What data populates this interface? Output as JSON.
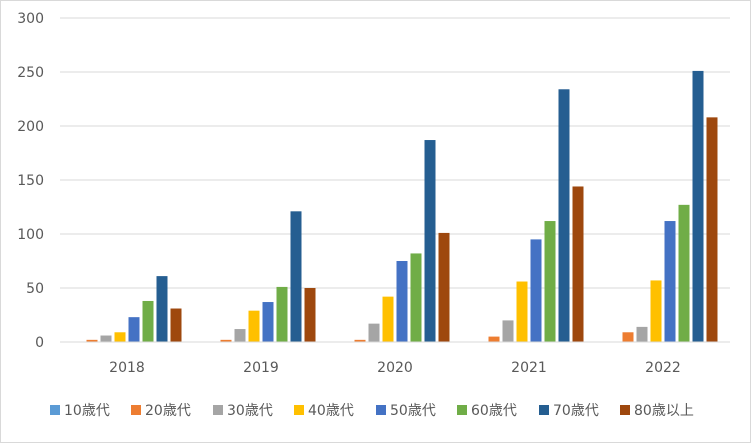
{
  "chart_data": {
    "type": "bar",
    "title": "",
    "xlabel": "",
    "ylabel": "",
    "categories": [
      "2018",
      "2019",
      "2020",
      "2021",
      "2022"
    ],
    "ylim": [
      0,
      300
    ],
    "yticks": [
      0,
      50,
      100,
      150,
      200,
      250,
      300
    ],
    "grid": true,
    "legend": "bottom",
    "series": [
      {
        "name": "10歳代",
        "color": "#5b9bd5",
        "values": [
          0,
          0,
          0,
          0,
          0
        ]
      },
      {
        "name": "20歳代",
        "color": "#ed7d31",
        "values": [
          2,
          2,
          2,
          5,
          9
        ]
      },
      {
        "name": "30歳代",
        "color": "#a5a5a5",
        "values": [
          6,
          12,
          17,
          20,
          14
        ]
      },
      {
        "name": "40歳代",
        "color": "#ffc000",
        "values": [
          9,
          29,
          42,
          56,
          57
        ]
      },
      {
        "name": "50歳代",
        "color": "#4472c4",
        "values": [
          23,
          37,
          75,
          95,
          112
        ]
      },
      {
        "name": "60歳代",
        "color": "#70ad47",
        "values": [
          38,
          51,
          82,
          112,
          127
        ]
      },
      {
        "name": "70歳代",
        "color": "#255e91",
        "values": [
          61,
          121,
          187,
          234,
          251
        ]
      },
      {
        "name": "80歳以上",
        "color": "#9e480e",
        "values": [
          31,
          50,
          101,
          144,
          208
        ]
      }
    ]
  }
}
